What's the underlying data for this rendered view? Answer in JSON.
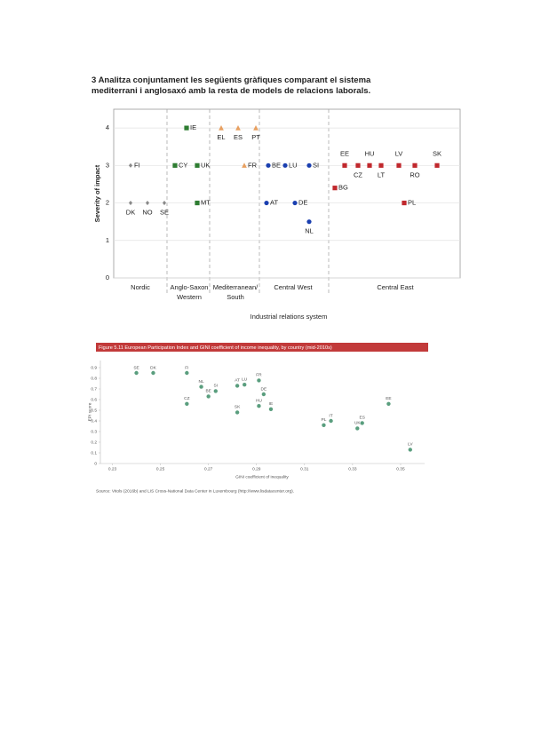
{
  "header": {
    "lines": [
      "3 Analitza conjuntament les següents gràfiques comparant el sistema",
      "mediterrani i anglosaxó amb la resta de models de relacions laborals."
    ]
  },
  "chart_data": [
    {
      "type": "scatter",
      "y_label": "Severity of impact",
      "x_label": "Industrial relations system",
      "ylim": [
        0,
        4.5
      ],
      "yticks": [
        0,
        1,
        2,
        3,
        4
      ],
      "grid": true,
      "groups": [
        {
          "label": [
            "Nordic"
          ],
          "color": "#8a8a8a",
          "marker": "diamond",
          "countries": [
            "FI",
            "DK",
            "NO",
            "SE"
          ],
          "values": [
            3,
            2,
            2,
            2
          ]
        },
        {
          "label": [
            "Anglo-Saxon",
            "Western"
          ],
          "color": "#2e7d32",
          "marker": "square",
          "countries": [
            "IE",
            "CY",
            "UK",
            "MT"
          ],
          "values": [
            4,
            3,
            3,
            2
          ]
        },
        {
          "label": [
            "Mediterranean/",
            "South"
          ],
          "color": "#e8a060",
          "marker": "triangle",
          "countries": [
            "EL",
            "ES",
            "PT",
            "FR"
          ],
          "values": [
            4,
            4,
            4,
            3
          ]
        },
        {
          "label": [
            "Central West"
          ],
          "color": "#1a3fb0",
          "marker": "circle",
          "countries": [
            "BE",
            "LU",
            "SI",
            "AT",
            "DE",
            "NL"
          ],
          "values": [
            3,
            3,
            3,
            2,
            2,
            1.5
          ]
        },
        {
          "label": [
            "Central East"
          ],
          "color": "#c0282d",
          "marker": "square",
          "countries": [
            "EE",
            "CZ",
            "HU",
            "LT",
            "LV",
            "RO",
            "SK",
            "BG",
            "PL"
          ],
          "values": [
            3,
            3,
            3,
            3,
            3,
            3,
            3,
            2.4,
            2
          ]
        }
      ]
    },
    {
      "type": "scatter",
      "title": "Figure 5.11 European Participation Index and GINI coefficient of income inequality, by country (mid-2010s)",
      "x_label": "GINI coefficient of inequality",
      "y_label": "EPI score",
      "color": "#5a9e7e",
      "xlim": [
        0.225,
        0.36
      ],
      "xticks": [
        0.23,
        0.25,
        0.27,
        0.29,
        0.31,
        0.33,
        0.35
      ],
      "ylim": [
        0,
        0.95
      ],
      "yticks": [
        0,
        0.1,
        0.2,
        0.3,
        0.4,
        0.5,
        0.6,
        0.7,
        0.8,
        0.9
      ],
      "labels": [
        "SE",
        "DK",
        "FI",
        "NL",
        "CZ",
        "BE",
        "SI",
        "AT",
        "LU",
        "SK",
        "FR",
        "DE",
        "HU",
        "IE",
        "PL",
        "IT",
        "UK",
        "ES",
        "EE",
        "LV"
      ],
      "x": [
        0.24,
        0.247,
        0.261,
        0.267,
        0.261,
        0.27,
        0.273,
        0.282,
        0.285,
        0.282,
        0.291,
        0.293,
        0.291,
        0.296,
        0.318,
        0.321,
        0.332,
        0.334,
        0.345,
        0.354
      ],
      "y": [
        0.85,
        0.85,
        0.85,
        0.72,
        0.56,
        0.63,
        0.68,
        0.73,
        0.74,
        0.48,
        0.78,
        0.65,
        0.54,
        0.51,
        0.36,
        0.4,
        0.33,
        0.38,
        0.56,
        0.13
      ]
    }
  ],
  "source": "Source: Vitols (2016b) and LIS Cross-National Data Center in Luxembourg (http://www.lisdatacenter.org)."
}
